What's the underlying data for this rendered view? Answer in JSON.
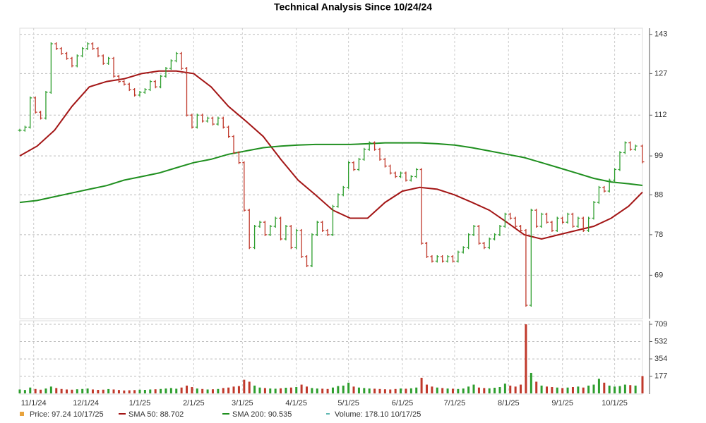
{
  "chart_data": {
    "type": "stock",
    "title": "Technical Analysis Since 10/24/24",
    "xlim": [
      0,
      358
    ],
    "xticks": [
      {
        "value": 8,
        "label": "11/1/24"
      },
      {
        "value": 38,
        "label": "12/1/24"
      },
      {
        "value": 69,
        "label": "1/1/25"
      },
      {
        "value": 100,
        "label": "2/1/25"
      },
      {
        "value": 128,
        "label": "3/1/25"
      },
      {
        "value": 159,
        "label": "4/1/25"
      },
      {
        "value": 189,
        "label": "5/1/25"
      },
      {
        "value": 220,
        "label": "6/1/25"
      },
      {
        "value": 250,
        "label": "7/1/25"
      },
      {
        "value": 281,
        "label": "8/1/25"
      },
      {
        "value": 312,
        "label": "9/1/25"
      },
      {
        "value": 342,
        "label": "10/1/25"
      }
    ],
    "ylim": [
      60.5,
      145.7
    ],
    "yticks": [
      69,
      78,
      88,
      99,
      112,
      127,
      143
    ],
    "log_scale": true,
    "grid": true,
    "up_color": "#2e9e2e",
    "down_color": "#c0392b",
    "x": [
      0,
      3,
      6,
      9,
      12,
      15,
      18,
      21,
      24,
      27,
      30,
      33,
      36,
      39,
      42,
      45,
      48,
      51,
      54,
      57,
      60,
      63,
      66,
      69,
      72,
      75,
      78,
      81,
      84,
      87,
      90,
      93,
      96,
      99,
      102,
      105,
      108,
      111,
      114,
      117,
      120,
      123,
      126,
      129,
      132,
      135,
      138,
      141,
      144,
      147,
      150,
      153,
      156,
      159,
      162,
      165,
      168,
      171,
      174,
      177,
      180,
      183,
      186,
      189,
      192,
      195,
      198,
      201,
      204,
      207,
      210,
      213,
      216,
      219,
      222,
      225,
      228,
      231,
      234,
      237,
      240,
      243,
      246,
      249,
      252,
      255,
      258,
      261,
      264,
      267,
      270,
      273,
      276,
      279,
      282,
      285,
      288,
      291,
      294,
      297,
      300,
      303,
      306,
      309,
      312,
      315,
      318,
      321,
      324,
      327,
      330,
      333,
      336,
      339,
      342,
      345,
      348,
      351,
      354,
      358
    ],
    "series": [
      {
        "name": "Price: 97.24  10/17/25",
        "color": "#e8a33d",
        "values": [
          107,
          108,
          118,
          113,
          111,
          120,
          139,
          137,
          135,
          133,
          130,
          134,
          137,
          139,
          137,
          134,
          131,
          133,
          126,
          124,
          123,
          121,
          119,
          120,
          121,
          124,
          122,
          126,
          129,
          132,
          135,
          129,
          112,
          108,
          112,
          110,
          111,
          109,
          111,
          108,
          105,
          100,
          97,
          84,
          75,
          80,
          81,
          78,
          80,
          82,
          77,
          80,
          75,
          79,
          73,
          71,
          78,
          81,
          79,
          78,
          85,
          88,
          90,
          97,
          95,
          98,
          101,
          103,
          101,
          98,
          96,
          94,
          93,
          94,
          92,
          93,
          95,
          76,
          73,
          72,
          73,
          72,
          73,
          72,
          74,
          75,
          78,
          80,
          76,
          75,
          77,
          78,
          80,
          83,
          82,
          80,
          79,
          63,
          84,
          80,
          83,
          81,
          79,
          82,
          81,
          83,
          80,
          82,
          79,
          82,
          86,
          90,
          89,
          92,
          95,
          100,
          103,
          101,
          102,
          97.24
        ]
      },
      {
        "name": "SMA 50: 88.702",
        "color": "#a31515",
        "x": [
          0,
          10,
          20,
          30,
          40,
          50,
          60,
          70,
          80,
          90,
          100,
          110,
          120,
          130,
          140,
          150,
          160,
          170,
          180,
          190,
          200,
          210,
          220,
          230,
          240,
          250,
          260,
          270,
          280,
          290,
          300,
          310,
          320,
          330,
          340,
          350,
          358
        ],
        "values": [
          99,
          102,
          107,
          115,
          122,
          124,
          125,
          127,
          128,
          128,
          127,
          122,
          115,
          110,
          105,
          98,
          92,
          88,
          84,
          82,
          82,
          86,
          89,
          90,
          89.5,
          88,
          86,
          84,
          81,
          78,
          77,
          78,
          79,
          80,
          82,
          85,
          88.702
        ]
      },
      {
        "name": "SMA 200: 90.535",
        "color": "#1f8f1f",
        "x": [
          0,
          10,
          20,
          30,
          40,
          50,
          60,
          70,
          80,
          90,
          100,
          110,
          120,
          130,
          140,
          150,
          160,
          170,
          180,
          190,
          200,
          210,
          220,
          230,
          240,
          250,
          260,
          270,
          280,
          290,
          300,
          310,
          320,
          330,
          340,
          350,
          358
        ],
        "values": [
          86,
          86.5,
          87.5,
          88.5,
          89.5,
          90.5,
          92,
          93,
          94,
          95.5,
          97,
          98,
          99.5,
          100.5,
          101.5,
          102,
          102.3,
          102.5,
          102.5,
          102.5,
          102.7,
          103,
          103,
          103,
          102.7,
          102.3,
          101.5,
          100.5,
          99.5,
          98.5,
          97,
          95.5,
          94,
          92.5,
          91.5,
          91,
          90.535
        ]
      }
    ],
    "volume": {
      "name": "Volume: 178.10  10/17/25",
      "color": "#2aa198",
      "ylim": [
        0,
        709
      ],
      "yticks": [
        177,
        354,
        532,
        709
      ],
      "values": [
        40,
        35,
        60,
        45,
        38,
        50,
        70,
        55,
        45,
        40,
        38,
        42,
        45,
        50,
        40,
        36,
        38,
        44,
        40,
        35,
        30,
        32,
        34,
        38,
        36,
        40,
        42,
        45,
        50,
        55,
        48,
        60,
        80,
        65,
        50,
        45,
        40,
        42,
        45,
        55,
        60,
        70,
        75,
        140,
        120,
        80,
        60,
        55,
        50,
        48,
        52,
        58,
        60,
        65,
        90,
        70,
        55,
        50,
        48,
        45,
        60,
        75,
        80,
        110,
        70,
        60,
        55,
        50,
        48,
        45,
        42,
        40,
        45,
        50,
        48,
        52,
        60,
        160,
        90,
        70,
        60,
        55,
        50,
        48,
        45,
        50,
        70,
        90,
        60,
        55,
        52,
        58,
        65,
        100,
        80,
        70,
        90,
        709,
        210,
        120,
        80,
        70,
        65,
        60,
        55,
        60,
        65,
        70,
        60,
        80,
        90,
        150,
        110,
        80,
        70,
        75,
        90,
        85,
        80,
        178.1
      ]
    }
  }
}
